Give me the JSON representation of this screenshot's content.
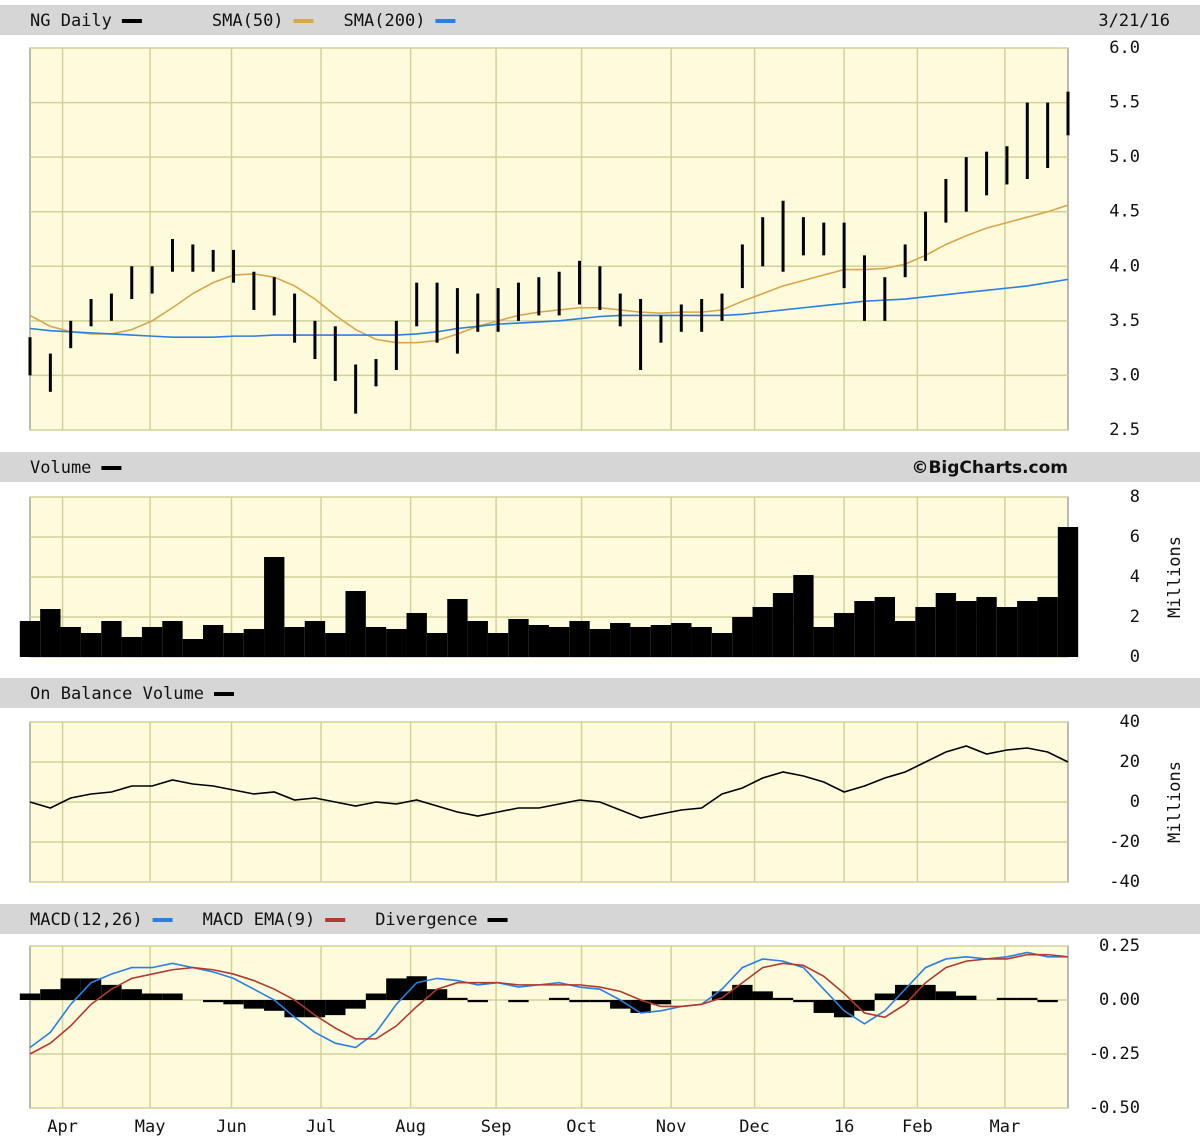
{
  "chart_data": [
    {
      "type": "ohlc",
      "name": "NG Daily",
      "color": "#000000",
      "date": "3/21/16",
      "xlim": [
        0,
        51
      ],
      "xticks": [
        1.6,
        5.9,
        9.9,
        14.3,
        18.7,
        22.9,
        27.1,
        31.5,
        35.6,
        40.0,
        43.6,
        47.9
      ],
      "ylim": [
        2.5,
        6
      ],
      "yticks": [
        2.5,
        {
          "value": 3,
          "label": "3.0"
        },
        3.5,
        {
          "value": 4,
          "label": "4.0"
        },
        4.5,
        {
          "value": 5,
          "label": "5.0"
        },
        5.5,
        {
          "value": 6,
          "label": "6.0"
        }
      ],
      "high": [
        3.35,
        3.2,
        3.5,
        3.7,
        3.75,
        4.0,
        4.0,
        4.25,
        4.2,
        4.15,
        4.15,
        3.95,
        3.9,
        3.75,
        3.5,
        3.45,
        3.1,
        3.15,
        3.5,
        3.85,
        3.85,
        3.8,
        3.75,
        3.8,
        3.85,
        3.9,
        3.95,
        4.05,
        4.0,
        3.75,
        3.7,
        3.55,
        3.65,
        3.7,
        3.75,
        4.2,
        4.45,
        4.6,
        4.45,
        4.4,
        4.4,
        4.1,
        3.9,
        4.2,
        4.5,
        4.8,
        5.0,
        5.05,
        5.1,
        5.5,
        5.5,
        5.6
      ],
      "low": [
        3.0,
        2.85,
        3.25,
        3.45,
        3.5,
        3.7,
        3.75,
        3.95,
        3.95,
        3.95,
        3.85,
        3.6,
        3.55,
        3.3,
        3.15,
        2.95,
        2.65,
        2.9,
        3.05,
        3.45,
        3.3,
        3.2,
        3.4,
        3.4,
        3.5,
        3.55,
        3.55,
        3.65,
        3.6,
        3.45,
        3.05,
        3.3,
        3.4,
        3.4,
        3.5,
        3.8,
        4.0,
        3.95,
        4.1,
        4.1,
        3.8,
        3.5,
        3.5,
        3.9,
        4.05,
        4.4,
        4.5,
        4.65,
        4.75,
        4.8,
        4.9,
        5.2
      ],
      "series": [
        {
          "name": "SMA(50)",
          "color": "#d9a74a",
          "values": [
            3.55,
            3.45,
            3.4,
            3.38,
            3.38,
            3.42,
            3.5,
            3.62,
            3.75,
            3.85,
            3.92,
            3.93,
            3.9,
            3.82,
            3.7,
            3.55,
            3.42,
            3.33,
            3.3,
            3.3,
            3.32,
            3.38,
            3.45,
            3.5,
            3.55,
            3.58,
            3.6,
            3.62,
            3.62,
            3.6,
            3.58,
            3.57,
            3.58,
            3.58,
            3.6,
            3.68,
            3.75,
            3.82,
            3.87,
            3.92,
            3.97,
            3.97,
            3.98,
            4.02,
            4.1,
            4.2,
            4.28,
            4.35,
            4.4,
            4.45,
            4.5,
            4.56
          ]
        },
        {
          "name": "SMA(200)",
          "color": "#2b7fe0",
          "values": [
            3.43,
            3.41,
            3.4,
            3.39,
            3.38,
            3.37,
            3.36,
            3.35,
            3.35,
            3.35,
            3.36,
            3.36,
            3.37,
            3.37,
            3.37,
            3.37,
            3.37,
            3.37,
            3.37,
            3.38,
            3.4,
            3.43,
            3.45,
            3.47,
            3.48,
            3.49,
            3.5,
            3.52,
            3.54,
            3.55,
            3.55,
            3.55,
            3.55,
            3.55,
            3.55,
            3.56,
            3.58,
            3.6,
            3.62,
            3.64,
            3.66,
            3.68,
            3.69,
            3.7,
            3.72,
            3.74,
            3.76,
            3.78,
            3.8,
            3.82,
            3.85,
            3.88
          ]
        }
      ]
    },
    {
      "type": "bar",
      "annotation": "©BigCharts.com",
      "ylabel": "Millions",
      "xlim": [
        0,
        51
      ],
      "xticks": [
        1.6,
        5.9,
        9.9,
        14.3,
        18.7,
        22.9,
        27.1,
        31.5,
        35.6,
        40.0,
        43.6,
        47.9
      ],
      "ylim": [
        0,
        8
      ],
      "yticks": [
        0,
        2,
        4,
        6,
        8
      ],
      "series": [
        {
          "name": "Volume",
          "color": "#000000",
          "values": [
            1.8,
            2.4,
            1.5,
            1.2,
            1.8,
            1.0,
            1.5,
            1.8,
            0.9,
            1.6,
            1.2,
            1.4,
            5.0,
            1.5,
            1.8,
            1.2,
            3.3,
            1.5,
            1.4,
            2.2,
            1.2,
            2.9,
            1.8,
            1.2,
            1.9,
            1.6,
            1.5,
            1.8,
            1.4,
            1.7,
            1.5,
            1.6,
            1.7,
            1.5,
            1.2,
            2.0,
            2.5,
            3.2,
            4.1,
            1.5,
            2.2,
            2.8,
            3.0,
            1.8,
            2.5,
            3.2,
            2.8,
            3.0,
            2.5,
            2.8,
            3.0,
            6.5
          ]
        }
      ]
    },
    {
      "type": "line",
      "ylabel": "Millions",
      "xlim": [
        0,
        51
      ],
      "xticks": [
        1.6,
        5.9,
        9.9,
        14.3,
        18.7,
        22.9,
        27.1,
        31.5,
        35.6,
        40.0,
        43.6,
        47.9
      ],
      "ylim": [
        -40,
        40
      ],
      "yticks": [
        -40,
        -20,
        0,
        20,
        40
      ],
      "series": [
        {
          "name": "On Balance Volume",
          "color": "#000000",
          "values": [
            0,
            -3,
            2,
            4,
            5,
            8,
            8,
            11,
            9,
            8,
            6,
            4,
            5,
            1,
            2,
            0,
            -2,
            0,
            -1,
            1,
            -2,
            -5,
            -7,
            -5,
            -3,
            -3,
            -1,
            1,
            0,
            -4,
            -8,
            -6,
            -4,
            -3,
            4,
            7,
            12,
            15,
            13,
            10,
            5,
            8,
            12,
            15,
            20,
            25,
            28,
            24,
            26,
            27,
            25,
            20
          ]
        }
      ]
    },
    {
      "type": "line",
      "xlim": [
        0,
        51
      ],
      "xticks": [
        {
          "value": 1.6,
          "label": "Apr"
        },
        {
          "value": 5.9,
          "label": "May"
        },
        {
          "value": 9.9,
          "label": "Jun"
        },
        {
          "value": 14.3,
          "label": "Jul"
        },
        {
          "value": 18.7,
          "label": "Aug"
        },
        {
          "value": 22.9,
          "label": "Sep"
        },
        {
          "value": 27.1,
          "label": "Oct"
        },
        {
          "value": 31.5,
          "label": "Nov"
        },
        {
          "value": 35.6,
          "label": "Dec"
        },
        {
          "value": 40.0,
          "label": "16"
        },
        {
          "value": 43.6,
          "label": "Feb"
        },
        {
          "value": 47.9,
          "label": "Mar"
        }
      ],
      "ylim": [
        -0.5,
        0.25
      ],
      "yticks": [
        {
          "value": -0.5,
          "label": "-0.50"
        },
        -0.25,
        {
          "value": 0,
          "label": "0.00"
        },
        0.25
      ],
      "series": [
        {
          "name": "MACD(12,26)",
          "color": "#2b7fe0",
          "values": [
            -0.22,
            -0.15,
            -0.02,
            0.08,
            0.12,
            0.15,
            0.15,
            0.17,
            0.15,
            0.13,
            0.1,
            0.05,
            0.0,
            -0.08,
            -0.15,
            -0.2,
            -0.22,
            -0.15,
            -0.02,
            0.08,
            0.1,
            0.09,
            0.07,
            0.08,
            0.06,
            0.07,
            0.08,
            0.06,
            0.05,
            0.0,
            -0.06,
            -0.05,
            -0.03,
            -0.02,
            0.05,
            0.15,
            0.19,
            0.18,
            0.15,
            0.05,
            -0.05,
            -0.11,
            -0.05,
            0.05,
            0.15,
            0.19,
            0.2,
            0.19,
            0.2,
            0.22,
            0.2,
            0.2
          ]
        },
        {
          "name": "MACD EMA(9)",
          "color": "#b03a2e",
          "values": [
            -0.25,
            -0.2,
            -0.12,
            -0.02,
            0.05,
            0.1,
            0.12,
            0.14,
            0.15,
            0.14,
            0.12,
            0.09,
            0.05,
            0.0,
            -0.07,
            -0.13,
            -0.18,
            -0.18,
            -0.12,
            -0.03,
            0.05,
            0.08,
            0.08,
            0.08,
            0.07,
            0.07,
            0.07,
            0.07,
            0.06,
            0.04,
            0.0,
            -0.03,
            -0.03,
            -0.02,
            0.01,
            0.08,
            0.15,
            0.17,
            0.16,
            0.11,
            0.03,
            -0.06,
            -0.08,
            -0.02,
            0.08,
            0.15,
            0.18,
            0.19,
            0.19,
            0.21,
            0.21,
            0.2
          ]
        },
        {
          "name": "Divergence",
          "color": "#000000",
          "style": "bar",
          "values": [
            0.03,
            0.05,
            0.1,
            0.1,
            0.07,
            0.05,
            0.03,
            0.03,
            0,
            -0.01,
            -0.02,
            -0.04,
            -0.05,
            -0.08,
            -0.08,
            -0.07,
            -0.04,
            0.03,
            0.1,
            0.11,
            0.05,
            0.01,
            -0.01,
            0,
            -0.01,
            0,
            0.01,
            -0.01,
            -0.01,
            -0.04,
            -0.06,
            -0.02,
            0,
            0,
            0.04,
            0.07,
            0.04,
            0.01,
            -0.01,
            -0.06,
            -0.08,
            -0.05,
            0.03,
            0.07,
            0.07,
            0.04,
            0.02,
            0,
            0.01,
            0.01,
            -0.01,
            0
          ]
        }
      ]
    }
  ]
}
